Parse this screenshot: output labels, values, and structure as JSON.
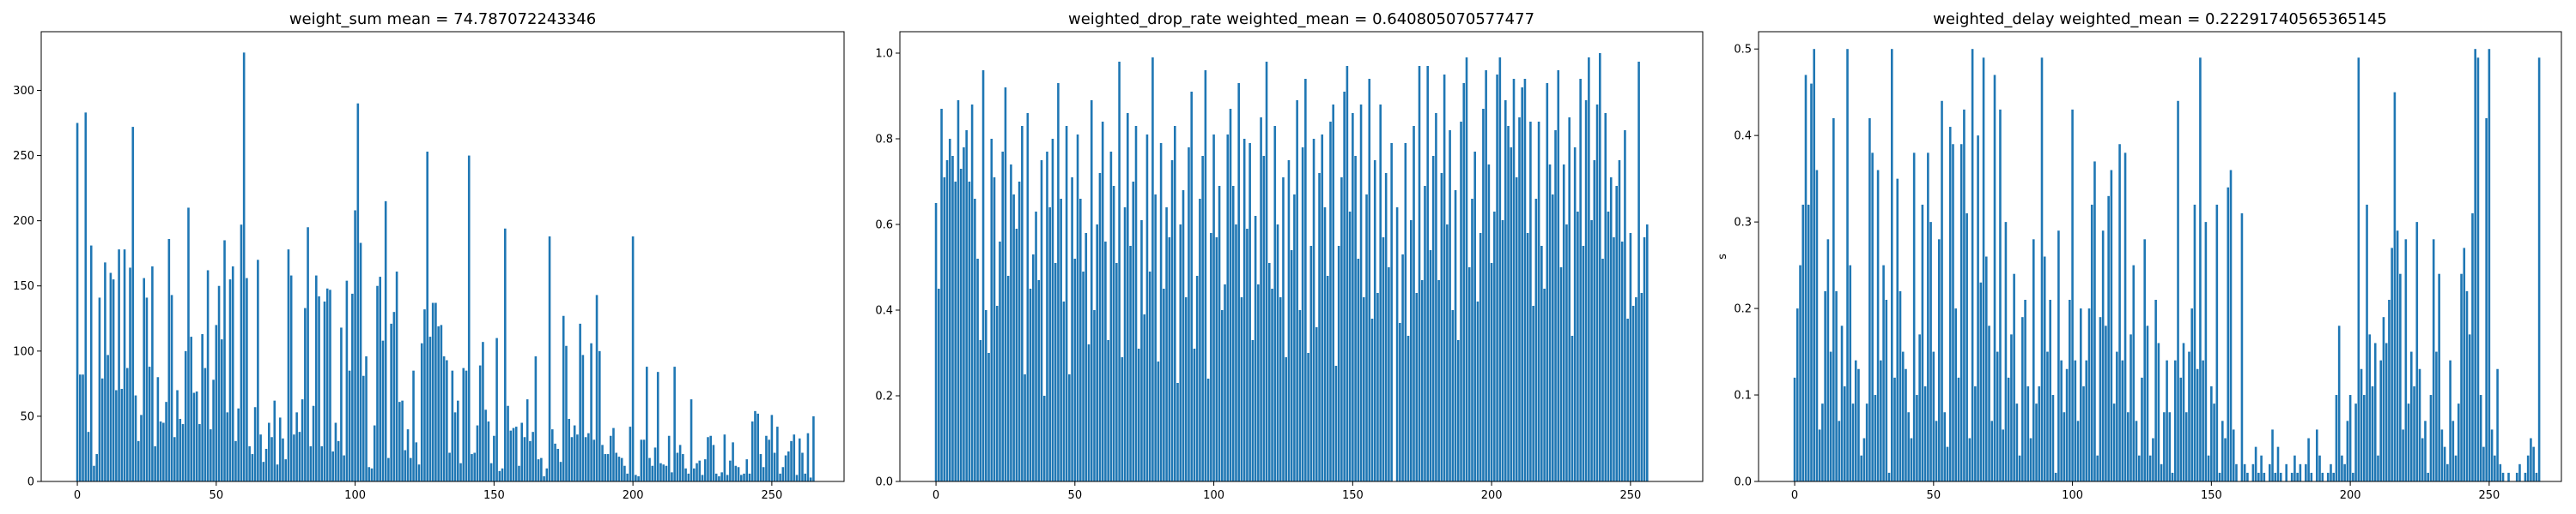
{
  "chart_data": [
    {
      "type": "bar",
      "title": "weight_sum mean = 74.787072243346",
      "xlabel": "",
      "ylabel": "",
      "xlim": [
        -13,
        276
      ],
      "ylim": [
        0,
        345
      ],
      "xticks": [
        0,
        50,
        100,
        150,
        200,
        250
      ],
      "yticks": [
        0,
        50,
        100,
        150,
        200,
        250,
        300
      ],
      "color": "#1f77b4",
      "x_start": 0,
      "values": [
        275,
        82,
        82,
        283,
        38,
        181,
        12,
        21,
        141,
        79,
        168,
        97,
        160,
        155,
        70,
        178,
        71,
        178,
        87,
        164,
        272,
        66,
        31,
        51,
        156,
        141,
        88,
        165,
        27,
        80,
        46,
        45,
        61,
        186,
        143,
        34,
        70,
        48,
        44,
        100,
        210,
        111,
        68,
        69,
        44,
        113,
        87,
        162,
        40,
        78,
        120,
        150,
        109,
        185,
        53,
        155,
        165,
        31,
        56,
        197,
        329,
        156,
        27,
        21,
        57,
        170,
        36,
        15,
        25,
        45,
        34,
        62,
        13,
        49,
        33,
        17,
        178,
        158,
        36,
        53,
        38,
        63,
        133,
        195,
        27,
        58,
        158,
        142,
        27,
        138,
        148,
        147,
        23,
        45,
        31,
        118,
        20,
        154,
        85,
        144,
        208,
        290,
        183,
        81,
        96,
        11,
        10,
        43,
        150,
        157,
        108,
        215,
        18,
        121,
        130,
        161,
        61,
        62,
        24,
        40,
        18,
        85,
        30,
        13,
        106,
        132,
        253,
        111,
        137,
        137,
        119,
        120,
        96,
        93,
        22,
        85,
        53,
        62,
        14,
        87,
        85,
        250,
        21,
        22,
        43,
        89,
        107,
        55,
        46,
        14,
        35,
        110,
        8,
        10,
        194,
        58,
        39,
        41,
        42,
        12,
        45,
        34,
        63,
        31,
        38,
        96,
        17,
        18,
        4,
        10,
        188,
        40,
        29,
        25,
        15,
        127,
        104,
        48,
        34,
        43,
        36,
        121,
        97,
        34,
        37,
        106,
        32,
        143,
        100,
        28,
        21,
        21,
        35,
        41,
        22,
        19,
        18,
        12,
        6,
        42,
        188,
        5,
        4,
        32,
        32,
        88,
        18,
        12,
        26,
        84,
        14,
        13,
        12,
        35,
        7,
        88,
        22,
        28,
        21,
        10,
        6,
        63,
        10,
        14,
        16,
        5,
        17,
        34,
        35,
        28,
        6,
        4,
        7,
        36,
        5,
        16,
        30,
        12,
        11,
        5,
        6,
        17,
        6,
        46,
        54,
        52,
        21,
        11,
        35,
        32,
        51,
        22,
        42,
        6,
        11,
        20,
        23,
        31,
        36,
        5,
        33,
        22,
        6,
        37,
        3,
        50
      ]
    },
    {
      "type": "bar",
      "title": "weighted_drop_rate weighted_mean = 0.640805070577477",
      "xlabel": "",
      "ylabel": "",
      "xlim": [
        -13,
        276
      ],
      "ylim": [
        0,
        1.05
      ],
      "xticks": [
        0,
        50,
        100,
        150,
        200,
        250
      ],
      "yticks": [
        0.0,
        0.2,
        0.4,
        0.6,
        0.8,
        1.0
      ],
      "color": "#1f77b4",
      "x_start": 0,
      "values": [
        0.65,
        0.45,
        0.87,
        0.71,
        0.75,
        0.8,
        0.76,
        0.7,
        0.89,
        0.73,
        0.78,
        0.82,
        0.7,
        0.88,
        0.66,
        0.52,
        0.33,
        0.96,
        0.4,
        0.3,
        0.8,
        0.71,
        0.41,
        0.56,
        0.77,
        0.92,
        0.48,
        0.74,
        0.67,
        0.59,
        0.7,
        0.83,
        0.25,
        0.86,
        0.45,
        0.53,
        0.63,
        0.47,
        0.75,
        0.2,
        0.77,
        0.64,
        0.8,
        0.51,
        0.93,
        0.66,
        0.42,
        0.83,
        0.25,
        0.71,
        0.52,
        0.81,
        0.66,
        0.49,
        0.58,
        0.32,
        0.89,
        0.4,
        0.6,
        0.72,
        0.84,
        0.56,
        0.33,
        0.77,
        0.69,
        0.51,
        0.98,
        0.29,
        0.64,
        0.86,
        0.55,
        0.7,
        0.83,
        0.31,
        0.61,
        0.39,
        0.81,
        0.49,
        0.99,
        0.67,
        0.28,
        0.79,
        0.45,
        0.64,
        0.57,
        0.75,
        0.83,
        0.23,
        0.6,
        0.68,
        0.43,
        0.78,
        0.91,
        0.31,
        0.48,
        0.66,
        0.76,
        0.96,
        0.24,
        0.58,
        0.81,
        0.57,
        0.69,
        0.4,
        0.46,
        0.81,
        0.87,
        0.69,
        0.6,
        0.93,
        0.43,
        0.8,
        0.59,
        0.79,
        0.33,
        0.62,
        0.46,
        0.85,
        0.76,
        0.98,
        0.51,
        0.45,
        0.83,
        0.6,
        0.43,
        0.71,
        0.29,
        0.75,
        0.54,
        0.67,
        0.89,
        0.4,
        0.78,
        0.94,
        0.3,
        0.55,
        0.8,
        0.36,
        0.72,
        0.81,
        0.64,
        0.48,
        0.84,
        0.88,
        0.27,
        0.55,
        0.71,
        0.91,
        0.97,
        0.63,
        0.86,
        0.76,
        0.52,
        0.88,
        0.43,
        0.67,
        0.94,
        0.38,
        0.75,
        0.44,
        0.88,
        0.57,
        0.72,
        0.5,
        0.79,
        0.0,
        0.64,
        0.37,
        0.53,
        0.79,
        0.34,
        0.61,
        0.83,
        0.44,
        0.97,
        0.47,
        0.69,
        0.97,
        0.54,
        0.76,
        0.86,
        0.47,
        0.72,
        0.95,
        0.6,
        0.82,
        0.4,
        0.68,
        0.33,
        0.84,
        0.93,
        0.99,
        0.5,
        0.66,
        0.77,
        0.42,
        0.58,
        0.87,
        0.96,
        0.74,
        0.51,
        0.63,
        0.95,
        0.99,
        0.61,
        0.89,
        0.83,
        0.78,
        0.94,
        0.71,
        0.85,
        0.92,
        0.94,
        0.58,
        0.84,
        0.41,
        0.66,
        0.84,
        0.55,
        0.45,
        0.93,
        0.74,
        0.67,
        0.82,
        0.96,
        0.5,
        0.74,
        0.6,
        0.85,
        0.34,
        0.78,
        0.63,
        0.94,
        0.55,
        0.89,
        0.99,
        0.61,
        0.75,
        0.88,
        1.0,
        0.52,
        0.86,
        0.63,
        0.71,
        0.57,
        0.69,
        0.75,
        0.56,
        0.82,
        0.38,
        0.58,
        0.41,
        0.43,
        0.98,
        0.44,
        0.57,
        0.6
      ]
    },
    {
      "type": "bar",
      "title": "weighted_delay weighted_mean = 0.22291740565365145",
      "xlabel": "",
      "ylabel": "s",
      "xlim": [
        -13,
        276
      ],
      "ylim": [
        0,
        0.52
      ],
      "xticks": [
        0,
        50,
        100,
        150,
        200,
        250
      ],
      "yticks": [
        0.0,
        0.1,
        0.2,
        0.3,
        0.4,
        0.5
      ],
      "color": "#1f77b4",
      "x_start": 0,
      "values": [
        0.12,
        0.2,
        0.25,
        0.32,
        0.47,
        0.32,
        0.46,
        0.5,
        0.36,
        0.06,
        0.09,
        0.22,
        0.28,
        0.15,
        0.42,
        0.22,
        0.07,
        0.18,
        0.11,
        0.5,
        0.25,
        0.09,
        0.14,
        0.13,
        0.03,
        0.05,
        0.09,
        0.42,
        0.38,
        0.1,
        0.36,
        0.14,
        0.25,
        0.21,
        0.01,
        0.5,
        0.12,
        0.35,
        0.22,
        0.15,
        0.13,
        0.08,
        0.05,
        0.38,
        0.1,
        0.17,
        0.32,
        0.11,
        0.38,
        0.3,
        0.15,
        0.07,
        0.28,
        0.44,
        0.08,
        0.04,
        0.41,
        0.39,
        0.2,
        0.12,
        0.39,
        0.43,
        0.31,
        0.05,
        0.5,
        0.11,
        0.4,
        0.23,
        0.49,
        0.26,
        0.18,
        0.07,
        0.47,
        0.15,
        0.43,
        0.06,
        0.3,
        0.12,
        0.17,
        0.24,
        0.09,
        0.03,
        0.19,
        0.21,
        0.11,
        0.05,
        0.28,
        0.09,
        0.11,
        0.49,
        0.26,
        0.15,
        0.21,
        0.1,
        0.01,
        0.29,
        0.14,
        0.08,
        0.13,
        0.21,
        0.43,
        0.14,
        0.07,
        0.2,
        0.11,
        0.14,
        0.2,
        0.32,
        0.37,
        0.03,
        0.19,
        0.29,
        0.18,
        0.33,
        0.36,
        0.09,
        0.15,
        0.39,
        0.14,
        0.38,
        0.08,
        0.17,
        0.25,
        0.07,
        0.03,
        0.12,
        0.28,
        0.18,
        0.03,
        0.05,
        0.21,
        0.16,
        0.02,
        0.08,
        0.14,
        0.08,
        0.01,
        0.14,
        0.44,
        0.12,
        0.16,
        0.08,
        0.15,
        0.2,
        0.32,
        0.13,
        0.49,
        0.14,
        0.3,
        0.03,
        0.11,
        0.09,
        0.32,
        0.01,
        0.07,
        0.05,
        0.34,
        0.36,
        0.06,
        0.02,
        0.0,
        0.31,
        0.02,
        0.01,
        0.0,
        0.02,
        0.04,
        0.01,
        0.03,
        0.01,
        0.0,
        0.02,
        0.06,
        0.01,
        0.04,
        0.01,
        0.0,
        0.02,
        0.0,
        0.01,
        0.03,
        0.01,
        0.02,
        0.0,
        0.02,
        0.05,
        0.01,
        0.0,
        0.06,
        0.03,
        0.01,
        0.0,
        0.01,
        0.02,
        0.01,
        0.1,
        0.18,
        0.03,
        0.02,
        0.07,
        0.1,
        0.01,
        0.09,
        0.49,
        0.13,
        0.1,
        0.32,
        0.17,
        0.11,
        0.16,
        0.03,
        0.14,
        0.19,
        0.16,
        0.21,
        0.27,
        0.45,
        0.29,
        0.24,
        0.06,
        0.28,
        0.09,
        0.15,
        0.11,
        0.3,
        0.13,
        0.05,
        0.07,
        0.01,
        0.1,
        0.28,
        0.15,
        0.24,
        0.06,
        0.04,
        0.02,
        0.14,
        0.07,
        0.03,
        0.09,
        0.24,
        0.27,
        0.22,
        0.17,
        0.31,
        0.5,
        0.49,
        0.1,
        0.04,
        0.42,
        0.5,
        0.06,
        0.03,
        0.13,
        0.02,
        0.01,
        0.0,
        0.01,
        0.0,
        0.0,
        0.01,
        0.02,
        0.0,
        0.01,
        0.03,
        0.05,
        0.04,
        0.01,
        0.49
      ]
    }
  ]
}
